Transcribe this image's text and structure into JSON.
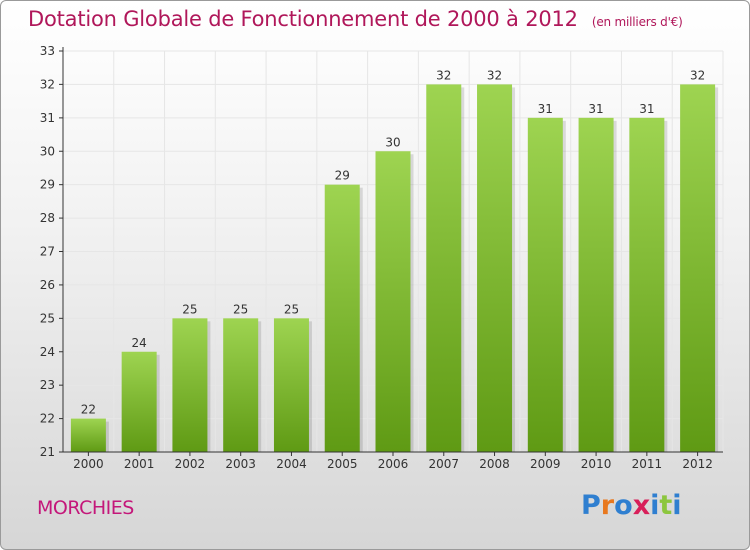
{
  "title": "Dotation Globale de Fonctionnement de 2000 à 2012",
  "subtitle": "(en milliers d'€)",
  "commune": "MORCHIES",
  "logo": {
    "text": "Proxiti",
    "letters": [
      {
        "ch": "P",
        "color": "#2f7fd0"
      },
      {
        "ch": "r",
        "color": "#e8781e"
      },
      {
        "ch": "o",
        "color": "#2f7fd0"
      },
      {
        "ch": "x",
        "color": "#d81f5a"
      },
      {
        "ch": "i",
        "color": "#2f7fd0"
      },
      {
        "ch": "t",
        "color": "#8cc63e"
      },
      {
        "ch": "i",
        "color": "#2f7fd0"
      }
    ]
  },
  "colors": {
    "title": "#b0175a",
    "bar_top": "#9ed451",
    "bar_bottom": "#5f9a14",
    "grid": "#e6e6e6",
    "axis": "#333333"
  },
  "chart_data": {
    "type": "bar",
    "title": "Dotation Globale de Fonctionnement de 2000 à 2012",
    "subtitle": "(en milliers d'€)",
    "categories": [
      "2000",
      "2001",
      "2002",
      "2003",
      "2004",
      "2005",
      "2006",
      "2007",
      "2008",
      "2009",
      "2010",
      "2011",
      "2012"
    ],
    "values": [
      22,
      24,
      25,
      25,
      25,
      29,
      30,
      32,
      32,
      31,
      31,
      31,
      32
    ],
    "ylim": [
      21,
      33
    ],
    "yticks": [
      21,
      22,
      23,
      24,
      25,
      26,
      27,
      28,
      29,
      30,
      31,
      32,
      33
    ],
    "grid": true,
    "xlabel": "",
    "ylabel": ""
  }
}
